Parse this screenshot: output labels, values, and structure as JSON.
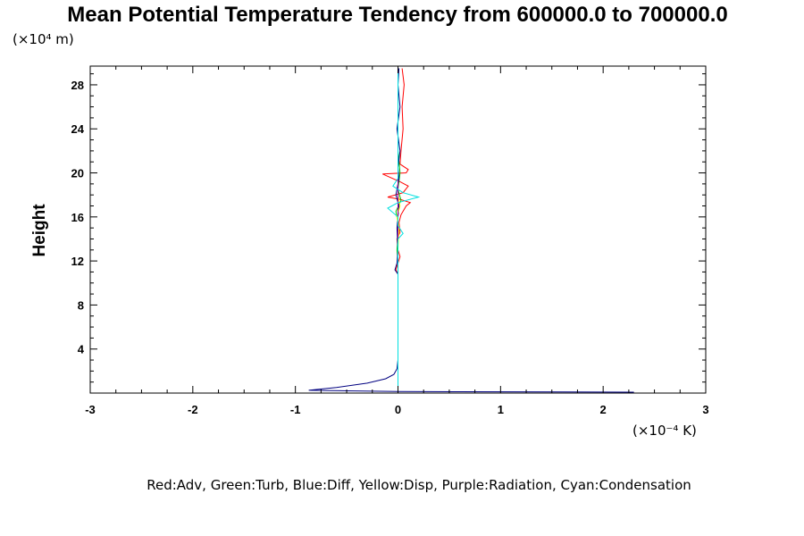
{
  "chart_data": {
    "type": "line",
    "title": "Mean Potential Temperature Tendency from 600000.0 to 700000.0",
    "ylabel": "Height",
    "y_unit_label": "(×10⁴ m)",
    "x_unit_label": "(×10⁻⁴ K)",
    "legend_text": "Red:Adv, Green:Turb, Blue:Diff, Yellow:Disp, Purple:Radiation, Cyan:Condensation",
    "xlim": [
      -3,
      3
    ],
    "ylim": [
      0,
      29.7
    ],
    "x_ticks": [
      -3,
      -2,
      -1,
      0,
      1,
      2,
      3
    ],
    "x_tick_labels": [
      "-3",
      "-2",
      "-1",
      "0",
      "1",
      "2",
      "3"
    ],
    "y_ticks": [
      4,
      8,
      12,
      16,
      20,
      24,
      28
    ],
    "y_tick_labels": [
      "4",
      "8",
      "12",
      "16",
      "20",
      "24",
      "28"
    ],
    "grid": false,
    "series": [
      {
        "name": "Adv",
        "color": "#ff0000",
        "points": [
          [
            0.0,
            0.0
          ],
          [
            0.0,
            10.8
          ],
          [
            -0.02,
            11.2
          ],
          [
            0.0,
            11.8
          ],
          [
            0.02,
            12.4
          ],
          [
            0.0,
            13.0
          ],
          [
            -0.01,
            14.0
          ],
          [
            0.02,
            14.6
          ],
          [
            0.01,
            15.5
          ],
          [
            0.03,
            16.2
          ],
          [
            0.08,
            17.0
          ],
          [
            0.12,
            17.3
          ],
          [
            0.02,
            17.6
          ],
          [
            -0.1,
            17.8
          ],
          [
            0.05,
            18.2
          ],
          [
            0.1,
            18.8
          ],
          [
            0.02,
            19.2
          ],
          [
            -0.15,
            19.9
          ],
          [
            0.08,
            20.0
          ],
          [
            0.1,
            20.3
          ],
          [
            0.02,
            20.8
          ],
          [
            0.03,
            22.0
          ],
          [
            0.05,
            24.0
          ],
          [
            0.04,
            26.0
          ],
          [
            0.06,
            28.0
          ],
          [
            0.04,
            29.5
          ]
        ]
      },
      {
        "name": "Turb",
        "color": "#00c000",
        "points": [
          [
            0.0,
            0.0
          ],
          [
            0.0,
            10.8
          ],
          [
            0.0,
            12.0
          ],
          [
            -0.01,
            13.0
          ],
          [
            0.01,
            15.0
          ],
          [
            -0.02,
            16.5
          ],
          [
            0.03,
            17.5
          ],
          [
            0.0,
            18.5
          ],
          [
            0.02,
            20.0
          ],
          [
            0.0,
            22.0
          ],
          [
            0.0,
            26.0
          ],
          [
            0.0,
            29.5
          ]
        ]
      },
      {
        "name": "Diff",
        "color": "#000080",
        "points": [
          [
            2.3,
            0.08
          ],
          [
            0.6,
            0.12
          ],
          [
            0.0,
            0.15
          ],
          [
            -0.5,
            0.2
          ],
          [
            -0.87,
            0.25
          ],
          [
            -0.6,
            0.5
          ],
          [
            -0.3,
            0.9
          ],
          [
            -0.12,
            1.3
          ],
          [
            -0.04,
            1.7
          ],
          [
            -0.01,
            2.2
          ],
          [
            0.0,
            3.0
          ],
          [
            0.0,
            10.8
          ],
          [
            -0.03,
            11.2
          ],
          [
            -0.01,
            11.8
          ],
          [
            0.0,
            13.0
          ],
          [
            -0.01,
            15.0
          ],
          [
            0.01,
            17.0
          ],
          [
            -0.02,
            18.0
          ],
          [
            0.01,
            19.5
          ],
          [
            0.0,
            20.5
          ],
          [
            0.02,
            22.0
          ],
          [
            -0.01,
            24.0
          ],
          [
            0.02,
            26.0
          ],
          [
            0.0,
            28.0
          ],
          [
            0.01,
            29.5
          ]
        ]
      },
      {
        "name": "Disp",
        "color": "#ffff00",
        "points": [
          [
            0.0,
            0.0
          ],
          [
            0.0,
            10.8
          ],
          [
            0.0,
            13.0
          ],
          [
            0.01,
            15.0
          ],
          [
            -0.01,
            16.0
          ],
          [
            0.02,
            17.0
          ],
          [
            0.0,
            18.0
          ],
          [
            0.0,
            20.0
          ],
          [
            0.0,
            29.5
          ]
        ]
      },
      {
        "name": "Radiation",
        "color": "#a000a0",
        "points": [
          [
            0.0,
            0.0
          ],
          [
            0.0,
            29.5
          ]
        ]
      },
      {
        "name": "Condensation",
        "color": "#00e0e0",
        "points": [
          [
            0.0,
            0.0
          ],
          [
            0.0,
            14.0
          ],
          [
            0.05,
            14.5
          ],
          [
            0.0,
            15.2
          ],
          [
            0.0,
            16.0
          ],
          [
            -0.1,
            16.8
          ],
          [
            0.0,
            17.3
          ],
          [
            0.2,
            17.8
          ],
          [
            0.05,
            18.2
          ],
          [
            -0.05,
            18.8
          ],
          [
            0.0,
            19.5
          ],
          [
            0.0,
            29.5
          ]
        ]
      }
    ]
  }
}
